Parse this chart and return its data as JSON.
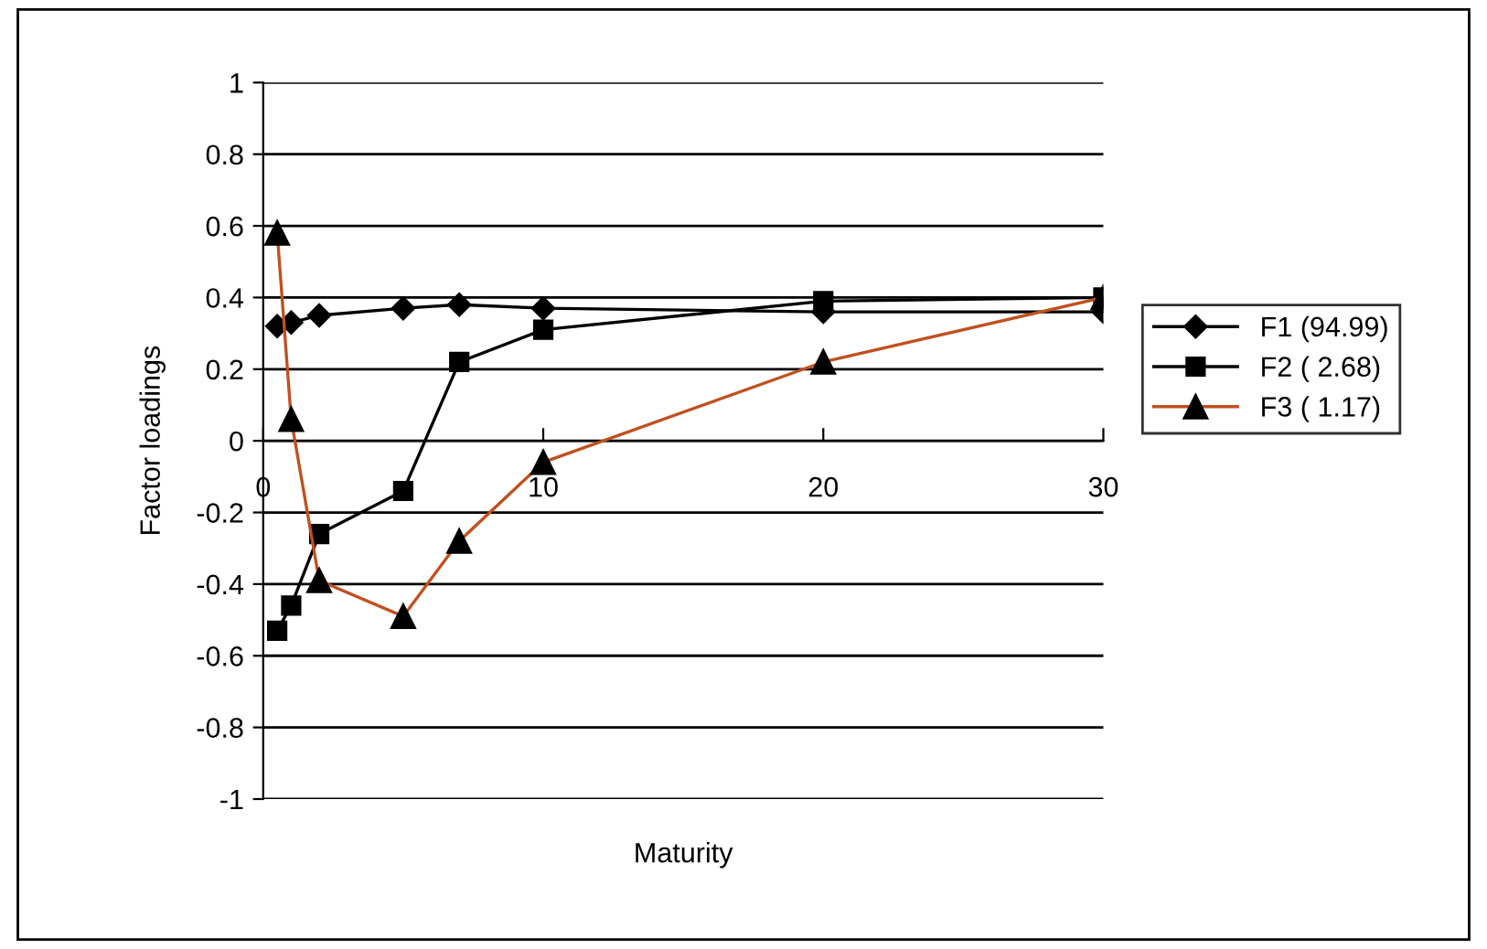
{
  "chart_data": {
    "type": "line",
    "xlabel": "Maturity",
    "ylabel": "Factor loadings",
    "x": [
      0.5,
      1,
      2,
      5,
      7,
      10,
      20,
      30
    ],
    "series": [
      {
        "name": "F1 (94.99)",
        "color": "#000000",
        "marker": "diamond",
        "values": [
          0.32,
          0.33,
          0.35,
          0.37,
          0.38,
          0.37,
          0.36,
          0.36
        ]
      },
      {
        "name": "F2 ( 2.68)",
        "color": "#000000",
        "marker": "square",
        "values": [
          -0.53,
          -0.46,
          -0.26,
          -0.14,
          0.22,
          0.31,
          0.39,
          0.4
        ]
      },
      {
        "name": "F3 ( 1.17)",
        "color": "#c0501f",
        "marker": "triangle",
        "values": [
          0.58,
          0.06,
          -0.39,
          -0.49,
          -0.28,
          -0.06,
          0.22,
          0.4
        ]
      }
    ],
    "xlim": [
      0,
      30
    ],
    "xticks": [
      0,
      10,
      20,
      30
    ],
    "ylim": [
      -1,
      1
    ],
    "yticks": [
      -1,
      -0.8,
      -0.6,
      -0.4,
      -0.2,
      0,
      0.2,
      0.4,
      0.6,
      0.8,
      1
    ],
    "grid": "y",
    "legend": "right"
  }
}
